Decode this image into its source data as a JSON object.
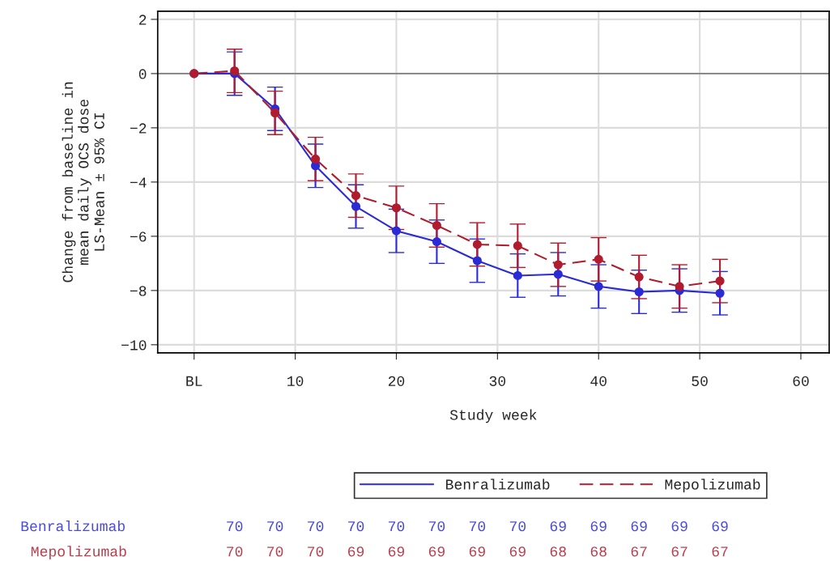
{
  "chart_data": {
    "type": "line",
    "xlabel": "Study week",
    "ylabel": "Change from baseline in\nmean daily OCS dose\nLS-Mean ± 95% CI",
    "x": [
      0,
      4,
      8,
      12,
      16,
      20,
      24,
      28,
      32,
      36,
      40,
      44,
      48,
      52
    ],
    "series": [
      {
        "name": "Benralizumab",
        "color": "#2b2bd6",
        "line_style": "solid",
        "values": [
          0,
          0.0,
          -1.3,
          -3.4,
          -4.9,
          -5.8,
          -6.2,
          -6.9,
          -7.45,
          -7.4,
          -7.85,
          -8.05,
          -8.0,
          -8.1
        ],
        "errors": [
          null,
          0.8,
          0.8,
          0.8,
          0.8,
          0.8,
          0.8,
          0.8,
          0.8,
          0.8,
          0.8,
          0.8,
          0.8,
          0.8
        ]
      },
      {
        "name": "Mepolizumab",
        "color": "#b01c2e",
        "line_style": "dashed",
        "values": [
          0,
          0.1,
          -1.45,
          -3.15,
          -4.5,
          -4.95,
          -5.6,
          -6.3,
          -6.35,
          -7.05,
          -6.85,
          -7.5,
          -7.85,
          -7.65
        ],
        "errors": [
          null,
          0.8,
          0.8,
          0.8,
          0.8,
          0.8,
          0.8,
          0.8,
          0.8,
          0.8,
          0.8,
          0.8,
          0.8,
          0.8
        ]
      }
    ],
    "marker": "circle",
    "grid": true,
    "legend": "bottom",
    "xlim": [
      -3.6,
      62.8
    ],
    "xticks": [
      {
        "value": 0,
        "label": "BL"
      },
      10,
      20,
      30,
      40,
      50,
      60
    ],
    "ylim": [
      -10.3,
      2.3
    ],
    "yticks": [
      -10,
      -8,
      -6,
      -4,
      -2,
      0,
      2
    ],
    "ref_lines": [
      {
        "axis": "y",
        "value": 0,
        "color": "#808080"
      }
    ],
    "annotations": [
      "Benralizumab",
      "70",
      "70",
      "70",
      "70",
      "70",
      "70",
      "70",
      "70",
      "69",
      "69",
      "69",
      "69",
      "69",
      "Mepolizumab",
      "70",
      "70",
      "70",
      "69",
      "69",
      "69",
      "69",
      "69",
      "68",
      "68",
      "67",
      "67",
      "67"
    ]
  }
}
